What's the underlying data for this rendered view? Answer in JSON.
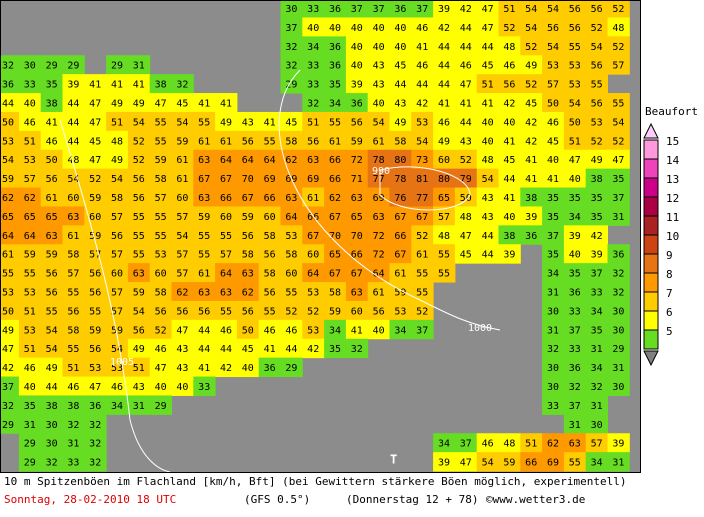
{
  "map": {
    "rows": [
      [
        null,
        null,
        null,
        null,
        null,
        null,
        null,
        null,
        null,
        null,
        null,
        null,
        null,
        30,
        33,
        36,
        37,
        37,
        36,
        37,
        39,
        42,
        47,
        51,
        54,
        54,
        56,
        56,
        52
      ],
      [
        null,
        null,
        null,
        null,
        null,
        null,
        null,
        null,
        null,
        null,
        null,
        null,
        null,
        37,
        40,
        40,
        40,
        40,
        40,
        46,
        42,
        44,
        47,
        52,
        54,
        56,
        56,
        52,
        48
      ],
      [
        null,
        null,
        null,
        null,
        null,
        null,
        null,
        null,
        null,
        null,
        null,
        null,
        null,
        32,
        34,
        36,
        40,
        40,
        40,
        41,
        44,
        44,
        44,
        48,
        52,
        54,
        55,
        54,
        52
      ],
      [
        32,
        30,
        29,
        29,
        null,
        29,
        31,
        null,
        null,
        null,
        null,
        null,
        null,
        32,
        33,
        36,
        40,
        43,
        45,
        46,
        44,
        46,
        45,
        46,
        49,
        53,
        53,
        56,
        57
      ],
      [
        36,
        33,
        35,
        39,
        41,
        41,
        41,
        38,
        32,
        null,
        null,
        null,
        null,
        29,
        33,
        35,
        39,
        43,
        44,
        44,
        44,
        47,
        51,
        56,
        52,
        57,
        53,
        55,
        null
      ],
      [
        44,
        40,
        38,
        44,
        47,
        49,
        49,
        47,
        45,
        41,
        41,
        null,
        null,
        null,
        32,
        34,
        36,
        40,
        43,
        42,
        41,
        41,
        41,
        42,
        45,
        50,
        54,
        56,
        55
      ],
      [
        50,
        46,
        41,
        44,
        47,
        51,
        54,
        55,
        54,
        55,
        49,
        43,
        41,
        45,
        51,
        55,
        56,
        54,
        49,
        53,
        46,
        44,
        40,
        40,
        42,
        46,
        50,
        53,
        54
      ],
      [
        53,
        51,
        46,
        44,
        45,
        48,
        52,
        55,
        59,
        61,
        61,
        56,
        55,
        58,
        56,
        61,
        59,
        61,
        58,
        54,
        49,
        43,
        40,
        41,
        42,
        45,
        51,
        52,
        52
      ],
      [
        54,
        53,
        50,
        48,
        47,
        49,
        52,
        59,
        61,
        63,
        64,
        64,
        64,
        62,
        63,
        66,
        72,
        78,
        80,
        73,
        60,
        52,
        48,
        45,
        41,
        40,
        47,
        49,
        47
      ],
      [
        59,
        57,
        56,
        54,
        52,
        54,
        56,
        58,
        61,
        67,
        67,
        70,
        69,
        69,
        69,
        66,
        71,
        77,
        78,
        81,
        80,
        79,
        54,
        44,
        41,
        41,
        40,
        38,
        35
      ],
      [
        62,
        62,
        61,
        60,
        59,
        58,
        56,
        57,
        60,
        63,
        66,
        67,
        66,
        63,
        61,
        62,
        63,
        69,
        76,
        77,
        65,
        50,
        43,
        41,
        38,
        35,
        35,
        35,
        37
      ],
      [
        65,
        65,
        65,
        63,
        60,
        57,
        55,
        55,
        57,
        59,
        60,
        59,
        60,
        64,
        66,
        67,
        65,
        63,
        67,
        67,
        57,
        48,
        43,
        40,
        39,
        35,
        34,
        35,
        31
      ],
      [
        64,
        64,
        63,
        61,
        59,
        56,
        55,
        55,
        54,
        55,
        55,
        56,
        58,
        53,
        67,
        70,
        70,
        72,
        66,
        52,
        48,
        47,
        44,
        38,
        36,
        37,
        39,
        42,
        null
      ],
      [
        61,
        59,
        59,
        58,
        57,
        57,
        55,
        53,
        57,
        55,
        57,
        58,
        56,
        58,
        60,
        65,
        66,
        72,
        67,
        61,
        55,
        45,
        44,
        39,
        null,
        35,
        40,
        39,
        36
      ],
      [
        55,
        55,
        56,
        57,
        56,
        60,
        63,
        60,
        57,
        61,
        64,
        63,
        58,
        60,
        64,
        67,
        67,
        64,
        61,
        55,
        55,
        null,
        null,
        null,
        null,
        34,
        35,
        37,
        32
      ],
      [
        53,
        53,
        56,
        55,
        56,
        57,
        59,
        58,
        62,
        63,
        63,
        62,
        56,
        55,
        53,
        58,
        63,
        61,
        59,
        55,
        null,
        null,
        null,
        null,
        null,
        31,
        36,
        33,
        32
      ],
      [
        50,
        51,
        55,
        56,
        55,
        57,
        54,
        56,
        56,
        56,
        55,
        56,
        55,
        52,
        52,
        59,
        60,
        56,
        53,
        52,
        null,
        null,
        null,
        null,
        null,
        30,
        33,
        34,
        30
      ],
      [
        49,
        53,
        54,
        58,
        59,
        59,
        56,
        52,
        47,
        44,
        46,
        50,
        46,
        46,
        53,
        34,
        41,
        40,
        34,
        37,
        null,
        null,
        null,
        null,
        null,
        31,
        37,
        35,
        30
      ],
      [
        47,
        51,
        54,
        55,
        56,
        54,
        49,
        46,
        43,
        44,
        44,
        45,
        41,
        44,
        42,
        35,
        32,
        null,
        null,
        null,
        null,
        null,
        null,
        null,
        null,
        32,
        33,
        31,
        29
      ],
      [
        42,
        46,
        49,
        51,
        53,
        53,
        51,
        47,
        43,
        41,
        42,
        40,
        36,
        29,
        null,
        null,
        null,
        null,
        null,
        null,
        null,
        null,
        null,
        null,
        null,
        30,
        36,
        34,
        31
      ],
      [
        37,
        40,
        44,
        46,
        47,
        46,
        43,
        40,
        40,
        33,
        null,
        null,
        null,
        null,
        null,
        null,
        null,
        null,
        null,
        null,
        null,
        null,
        null,
        null,
        null,
        30,
        32,
        32,
        30
      ],
      [
        32,
        35,
        38,
        38,
        36,
        34,
        31,
        29,
        null,
        null,
        null,
        null,
        null,
        null,
        null,
        null,
        null,
        null,
        null,
        null,
        null,
        null,
        null,
        null,
        null,
        33,
        37,
        31,
        null
      ],
      [
        29,
        31,
        30,
        32,
        32,
        null,
        null,
        null,
        null,
        null,
        null,
        null,
        null,
        null,
        null,
        null,
        null,
        null,
        null,
        null,
        null,
        null,
        null,
        null,
        null,
        null,
        31,
        30,
        null
      ],
      [
        null,
        29,
        30,
        31,
        32,
        null,
        null,
        null,
        null,
        null,
        null,
        null,
        null,
        null,
        null,
        null,
        null,
        null,
        null,
        null,
        34,
        37,
        46,
        48,
        51,
        62,
        63,
        57,
        39
      ],
      [
        null,
        29,
        32,
        33,
        32,
        null,
        null,
        null,
        null,
        null,
        null,
        null,
        null,
        null,
        null,
        null,
        null,
        null,
        null,
        null,
        39,
        47,
        54,
        59,
        66,
        69,
        55,
        34,
        31
      ]
    ],
    "isobar_labels": [
      "990",
      "1000",
      "1005"
    ],
    "low_marker": "T"
  },
  "legend": {
    "title": "Beaufort",
    "levels": [
      15,
      14,
      13,
      12,
      11,
      10,
      9,
      8,
      7,
      6,
      5
    ],
    "colors": [
      "#ff99dd",
      "#ee44bb",
      "#cc0088",
      "#aa0044",
      "#aa2222",
      "#cc4411",
      "#e67314",
      "#ff9900",
      "#ffcc00",
      "#ffff00",
      "#66dd22"
    ]
  },
  "footer": {
    "description": "10 m Spitzenböen im Flachland [km/h, Bft] (bei Gewittern stärkere Böen möglich, experimentell)",
    "date": "Sonntag, 28-02-2010  18 UTC",
    "model": "(GFS 0.5°)",
    "run": "(Donnerstag 12 + 78)",
    "source": "©www.wetter3.de"
  }
}
